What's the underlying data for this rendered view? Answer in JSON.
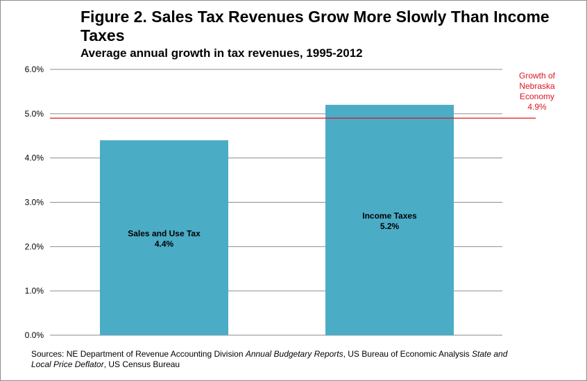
{
  "header": {
    "title": "Figure 2. Sales Tax Revenues Grow More Slowly Than Income Taxes",
    "subtitle": "Average annual growth in tax revenues, 1995-2012"
  },
  "chart_data": {
    "type": "bar",
    "categories": [
      "Sales and Use Tax",
      "Income Taxes"
    ],
    "values": [
      4.4,
      5.2
    ],
    "value_labels": [
      "4.4%",
      "5.2%"
    ],
    "ylim": [
      0,
      6
    ],
    "yticks": [
      "0.0%",
      "1.0%",
      "2.0%",
      "3.0%",
      "4.0%",
      "5.0%",
      "6.0%"
    ],
    "grid": true,
    "bar_color": "#4bacc6",
    "reference_line": {
      "value": 4.9,
      "label_lines": [
        "Growth of",
        "Nebraska",
        "Economy",
        "4.9%"
      ],
      "color": "#e0141e"
    }
  },
  "sources": {
    "p1": "Sources: NE Department of Revenue Accounting Division ",
    "p2": "Annual Budgetary Reports",
    "p3": ", US Bureau of Economic Analysis ",
    "p4": "State and Local Price Deflator",
    "p5": ", US Census Bureau"
  }
}
